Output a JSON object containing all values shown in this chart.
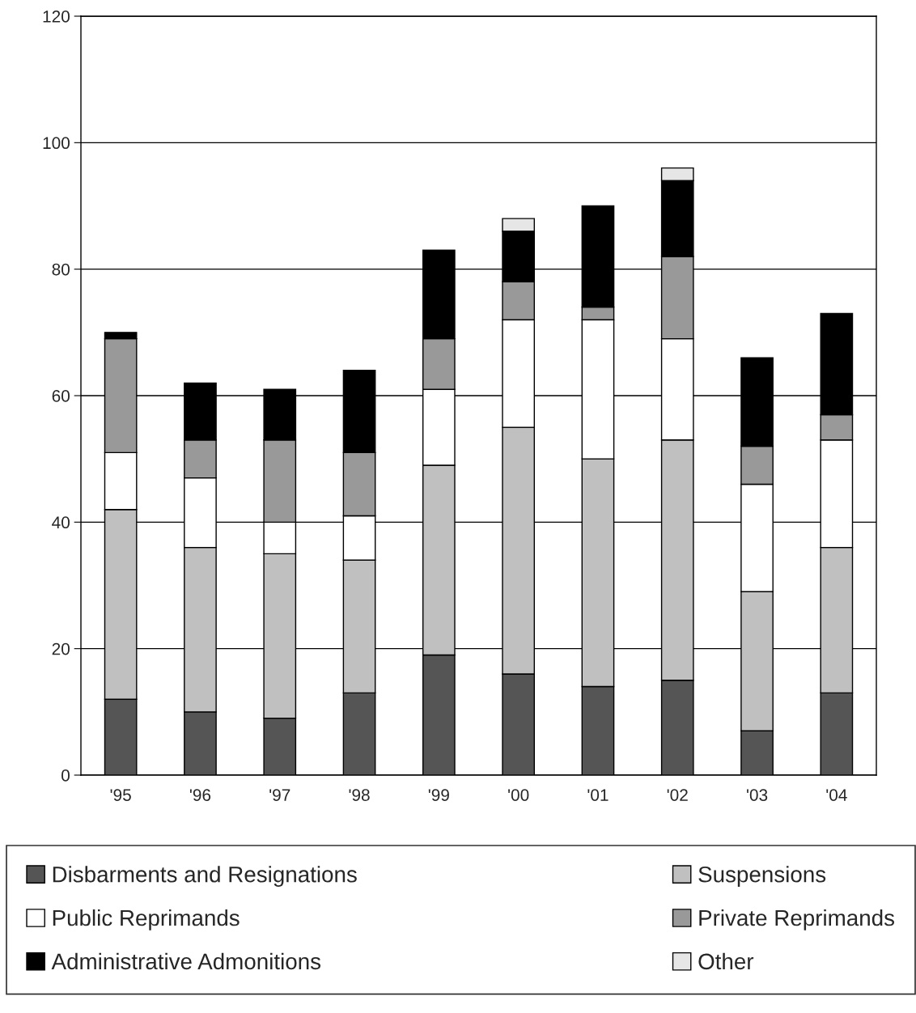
{
  "chart_data": {
    "type": "bar",
    "stacked": true,
    "categories": [
      "'95",
      "'96",
      "'97",
      "'98",
      "'99",
      "'00",
      "'01",
      "'02",
      "'03",
      "'04"
    ],
    "series": [
      {
        "name": "Disbarments and Resignations",
        "color": "#555555",
        "values": [
          12,
          10,
          9,
          13,
          19,
          16,
          14,
          15,
          7,
          13
        ]
      },
      {
        "name": "Suspensions",
        "color": "#c0c0c0",
        "values": [
          30,
          26,
          26,
          21,
          30,
          39,
          36,
          38,
          22,
          23
        ]
      },
      {
        "name": "Public Reprimands",
        "color": "#ffffff",
        "values": [
          9,
          11,
          5,
          7,
          12,
          17,
          22,
          16,
          17,
          17
        ]
      },
      {
        "name": "Private Reprimands",
        "color": "#999999",
        "values": [
          18,
          6,
          13,
          10,
          8,
          6,
          2,
          13,
          6,
          4
        ]
      },
      {
        "name": "Administrative Admonitions",
        "color": "#000000",
        "values": [
          1,
          9,
          8,
          13,
          14,
          8,
          16,
          12,
          14,
          16
        ]
      },
      {
        "name": "Other",
        "color": "#e6e6e6",
        "values": [
          null,
          null,
          null,
          null,
          null,
          2,
          null,
          2,
          null,
          null
        ]
      }
    ],
    "ylim": [
      0,
      120
    ],
    "yticks": [
      0,
      20,
      40,
      60,
      80,
      100,
      120
    ],
    "grid": "y",
    "legend": "bottom"
  }
}
